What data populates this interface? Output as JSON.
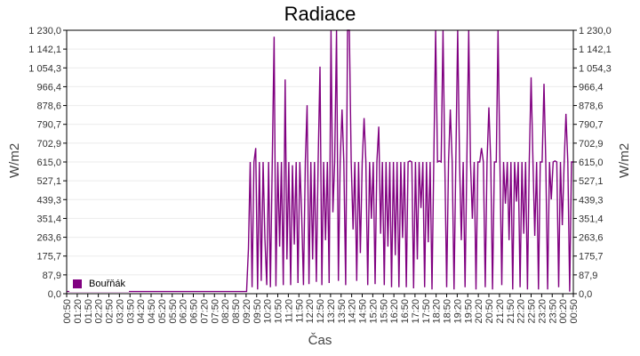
{
  "chart_data": {
    "type": "line",
    "title": "Radiace",
    "xlabel": "Čas",
    "ylabel": "W/m2",
    "ylim": [
      0,
      1230
    ],
    "y_ticks": [
      "0,0",
      "87,9",
      "175,7",
      "263,6",
      "351,4",
      "439,3",
      "527,1",
      "615,0",
      "702,9",
      "790,7",
      "878,6",
      "966,4",
      "1 054,3",
      "1 142,1",
      "1 230,0"
    ],
    "x_ticks": [
      "00:50",
      "01:20",
      "01:50",
      "02:20",
      "02:50",
      "03:20",
      "03:50",
      "04:20",
      "04:50",
      "05:20",
      "05:50",
      "06:20",
      "06:50",
      "07:20",
      "07:50",
      "08:20",
      "08:50",
      "09:20",
      "09:50",
      "10:20",
      "10:50",
      "11:20",
      "11:50",
      "12:20",
      "12:50",
      "13:20",
      "13:50",
      "14:20",
      "14:50",
      "15:20",
      "15:50",
      "16:20",
      "16:50",
      "17:20",
      "17:50",
      "18:20",
      "18:50",
      "19:20",
      "19:50",
      "20:20",
      "20:50",
      "21:20",
      "21:50",
      "22:20",
      "22:50",
      "23:20",
      "23:50",
      "00:20",
      "00:50"
    ],
    "grid": true,
    "legend_position": "bottom-left inside",
    "series": [
      {
        "name": "Bouřňák",
        "color": "#800080",
        "values": [
          10,
          10,
          10,
          10,
          10,
          10,
          10,
          10,
          10,
          10,
          10,
          10,
          10,
          10,
          10,
          10,
          10,
          10,
          10,
          10,
          10,
          10,
          10,
          10,
          10,
          10,
          10,
          10,
          10,
          10,
          10,
          10,
          10,
          10,
          10,
          10,
          10,
          10,
          10,
          10,
          10,
          10,
          10,
          10,
          10,
          10,
          10,
          10,
          10,
          10,
          10,
          10,
          10,
          10,
          10,
          10,
          10,
          10,
          10,
          10,
          10,
          10,
          10,
          10,
          10,
          10,
          10,
          10,
          10,
          10,
          10,
          10,
          10,
          10,
          10,
          10,
          10,
          10,
          10,
          10,
          10,
          10,
          10,
          10,
          10,
          10,
          10,
          10,
          10,
          10,
          10,
          10,
          10,
          10,
          10,
          10,
          10,
          10,
          10,
          210,
          615,
          30,
          615,
          680,
          20,
          615,
          60,
          615,
          260,
          40,
          615,
          30,
          615,
          1200,
          35,
          615,
          220,
          615,
          40,
          1000,
          160,
          615,
          40,
          600,
          230,
          615,
          50,
          615,
          380,
          40,
          615,
          880,
          45,
          615,
          160,
          615,
          55,
          615,
          1060,
          40,
          615,
          250,
          615,
          50,
          1230,
          380,
          615,
          1230,
          60,
          615,
          860,
          615,
          40,
          1230,
          1230,
          615,
          300,
          615,
          60,
          615,
          190,
          615,
          820,
          615,
          40,
          615,
          350,
          615,
          45,
          615,
          780,
          280,
          615,
          40,
          615,
          220,
          615,
          30,
          615,
          180,
          615,
          30,
          615,
          260,
          615,
          30,
          615,
          620,
          615,
          25,
          615,
          160,
          615,
          400,
          615,
          30,
          615,
          240,
          615,
          20,
          615,
          1230,
          615,
          620,
          615,
          1230,
          615,
          30,
          615,
          860,
          615,
          20,
          615,
          1230,
          615,
          250,
          615,
          30,
          615,
          1230,
          615,
          350,
          615,
          20,
          615,
          615,
          680,
          615,
          30,
          615,
          870,
          615,
          20,
          615,
          615,
          1230,
          615,
          40,
          615,
          420,
          615,
          250,
          615,
          20,
          615,
          430,
          615,
          30,
          615,
          280,
          615,
          20,
          615,
          1010,
          615,
          270,
          615,
          20,
          615,
          615,
          980,
          615,
          20,
          615,
          440,
          615,
          620,
          615,
          30,
          615,
          320,
          615,
          840,
          615,
          10,
          615,
          615
        ]
      }
    ]
  },
  "legend": {
    "items": [
      {
        "label": "Bouřňák",
        "color": "#800080"
      }
    ]
  }
}
